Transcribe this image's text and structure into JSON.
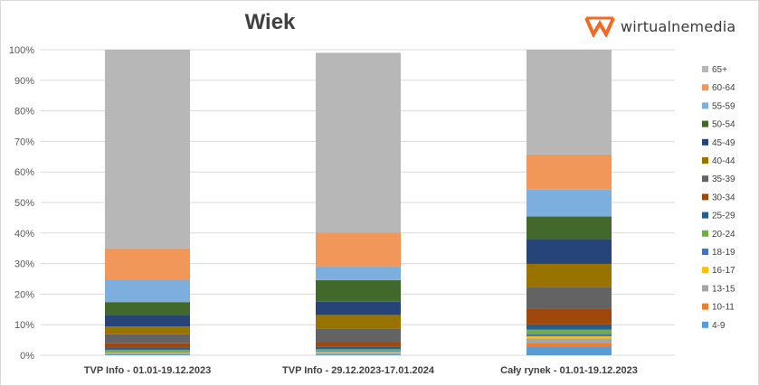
{
  "chart_data": {
    "type": "stacked-bar",
    "title": "Wiek",
    "brand": "wirtualnemedia",
    "brand_icon": "wm-logo-icon",
    "brand_color": "#f26a21",
    "y_ticks": [
      "0%",
      "10%",
      "20%",
      "30%",
      "40%",
      "50%",
      "60%",
      "70%",
      "80%",
      "90%",
      "100%"
    ],
    "ylim": [
      0,
      100
    ],
    "categories": [
      "TVP Info - 01.01-19.12.2023",
      "TVP Info - 29.12.2023-17.01.2024",
      "Cały rynek - 01.01-19.12.2023"
    ],
    "legend_position": "right",
    "series": [
      {
        "name": "4-9",
        "color": "#5b9bd5",
        "values": [
          0.3,
          0.3,
          2.8
        ]
      },
      {
        "name": "10-11",
        "color": "#ed7d31",
        "values": [
          0.2,
          0.2,
          1.3
        ]
      },
      {
        "name": "13-15",
        "color": "#a5a5a5",
        "values": [
          0.3,
          0.3,
          1.4
        ]
      },
      {
        "name": "16-17",
        "color": "#ffc000",
        "values": [
          0.2,
          0.3,
          0.7
        ]
      },
      {
        "name": "18-19",
        "color": "#4472c4",
        "values": [
          0.2,
          0.3,
          0.8
        ]
      },
      {
        "name": "20-24",
        "color": "#70ad47",
        "values": [
          0.6,
          0.6,
          1.4
        ]
      },
      {
        "name": "25-29",
        "color": "#255e91",
        "values": [
          0.7,
          0.7,
          1.7
        ]
      },
      {
        "name": "30-34",
        "color": "#9e480e",
        "values": [
          1.4,
          1.6,
          5.0
        ]
      },
      {
        "name": "35-39",
        "color": "#636363",
        "values": [
          3.0,
          4.3,
          7.2
        ]
      },
      {
        "name": "40-44",
        "color": "#997300",
        "values": [
          2.5,
          4.6,
          7.6
        ]
      },
      {
        "name": "45-49",
        "color": "#264478",
        "values": [
          3.8,
          4.3,
          8.1
        ]
      },
      {
        "name": "50-54",
        "color": "#43682b",
        "values": [
          4.2,
          7.1,
          7.4
        ]
      },
      {
        "name": "55-59",
        "color": "#7cafdd",
        "values": [
          7.3,
          4.5,
          8.8
        ]
      },
      {
        "name": "60-64",
        "color": "#f1975a",
        "values": [
          10.3,
          11.1,
          11.5
        ]
      },
      {
        "name": "65+",
        "color": "#b7b7b7",
        "values": [
          65.0,
          58.8,
          34.3
        ]
      }
    ]
  }
}
